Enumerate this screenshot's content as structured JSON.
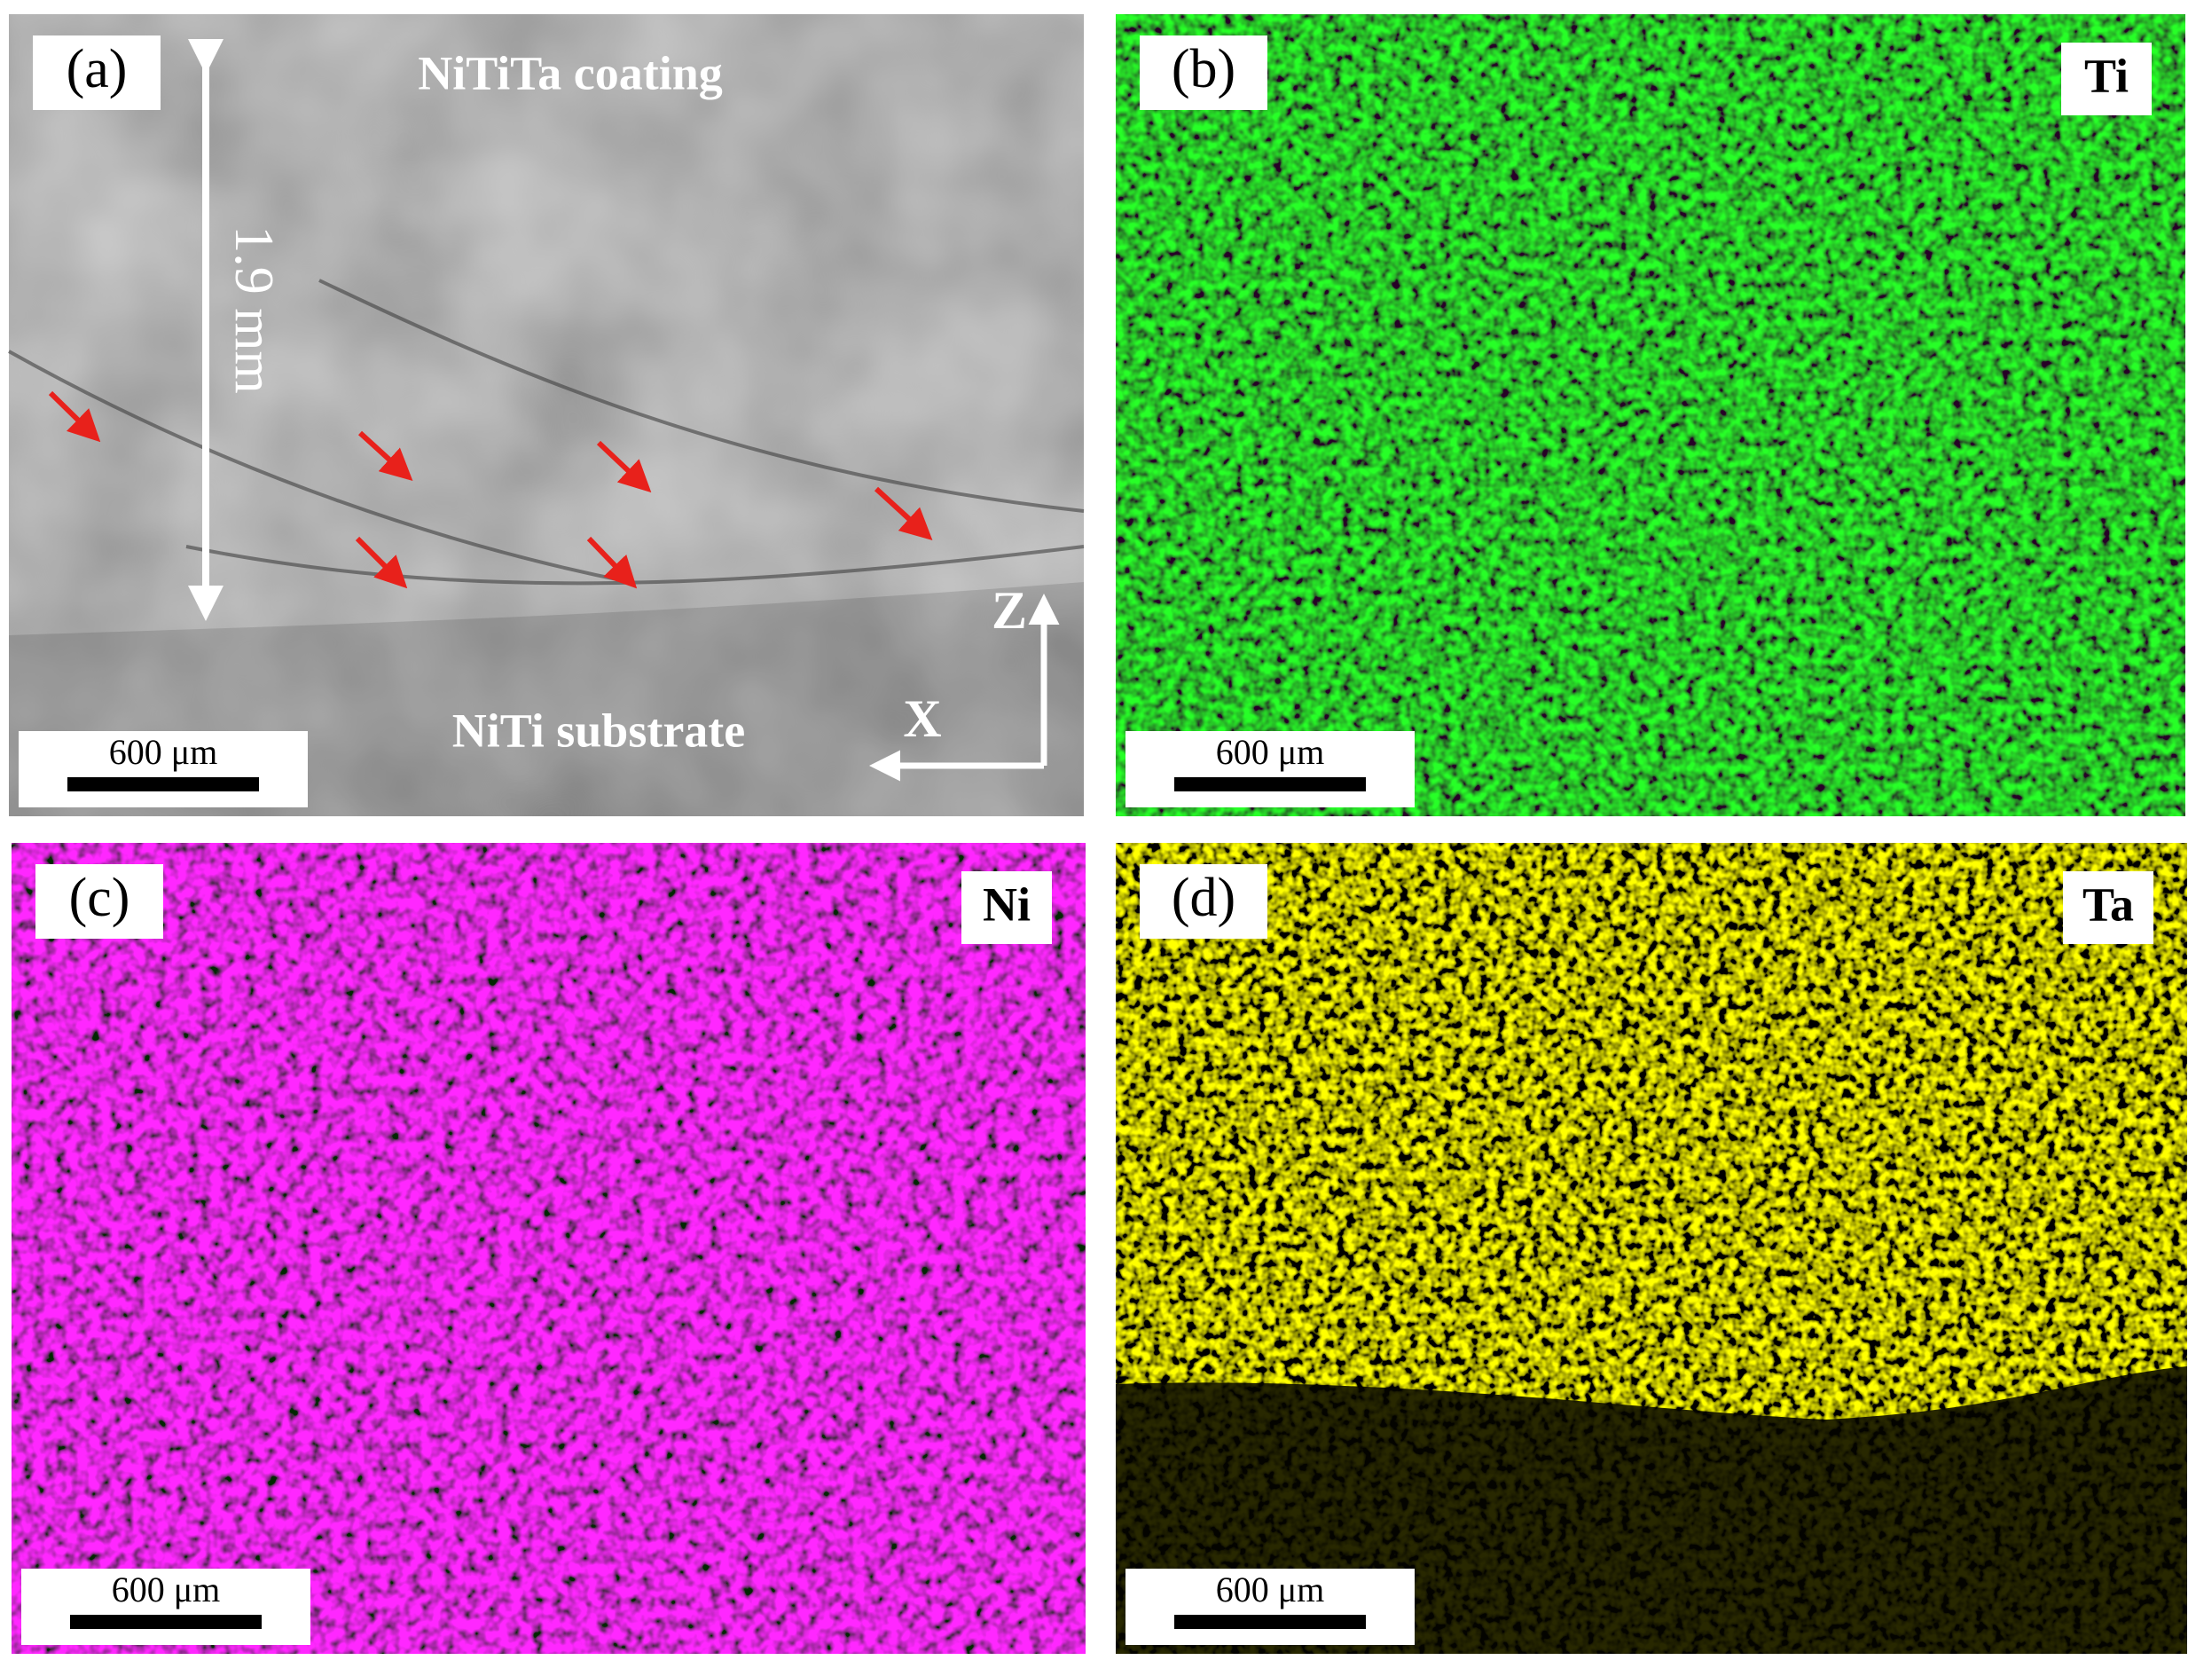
{
  "panels": [
    {
      "label": "(a)",
      "scale_bar": "600 μm",
      "annotations": {
        "coating": "NiTiTa coating",
        "substrate": "NiTi substrate",
        "thickness": "1.9 mm",
        "axis_z": "Z",
        "axis_x": "X"
      }
    },
    {
      "label": "(b)",
      "element": "Ti",
      "scale_bar": "600 μm"
    },
    {
      "label": "(c)",
      "element": "Ni",
      "scale_bar": "600 μm"
    },
    {
      "label": "(d)",
      "element": "Ta",
      "scale_bar": "600 μm"
    }
  ]
}
